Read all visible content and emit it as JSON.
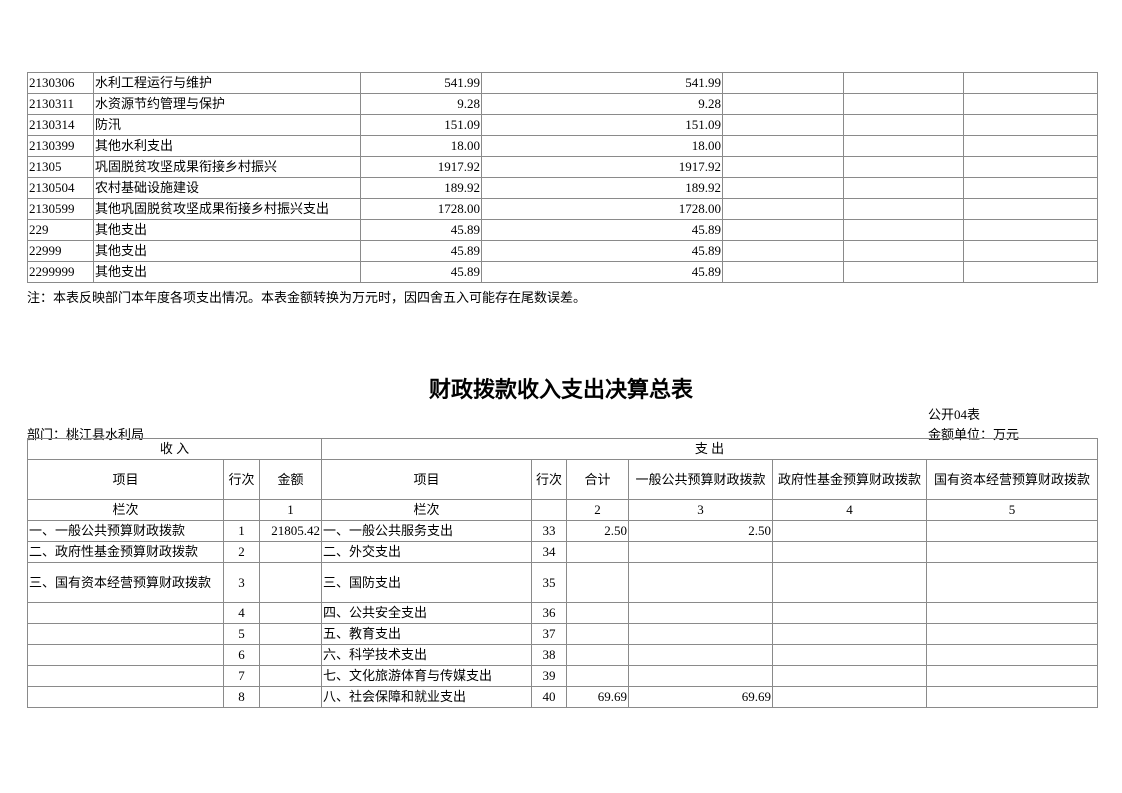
{
  "table1": {
    "rows": [
      {
        "code": "2130306",
        "name": "水利工程运行与维护",
        "total": "541.99",
        "c2": "",
        "c3": "541.99",
        "c4": "",
        "c5": "",
        "c6": ""
      },
      {
        "code": "2130311",
        "name": "水资源节约管理与保护",
        "total": "9.28",
        "c2": "",
        "c3": "9.28",
        "c4": "",
        "c5": "",
        "c6": ""
      },
      {
        "code": "2130314",
        "name": "防汛",
        "total": "151.09",
        "c2": "",
        "c3": "151.09",
        "c4": "",
        "c5": "",
        "c6": ""
      },
      {
        "code": "2130399",
        "name": "其他水利支出",
        "total": "18.00",
        "c2": "",
        "c3": "18.00",
        "c4": "",
        "c5": "",
        "c6": ""
      },
      {
        "code": "21305",
        "name": "巩固脱贫攻坚成果衔接乡村振兴",
        "total": "1917.92",
        "c2": "",
        "c3": "1917.92",
        "c4": "",
        "c5": "",
        "c6": ""
      },
      {
        "code": "2130504",
        "name": "农村基础设施建设",
        "total": "189.92",
        "c2": "",
        "c3": "189.92",
        "c4": "",
        "c5": "",
        "c6": ""
      },
      {
        "code": "2130599",
        "name": "其他巩固脱贫攻坚成果衔接乡村振兴支出",
        "total": "1728.00",
        "c2": "",
        "c3": "1728.00",
        "c4": "",
        "c5": "",
        "c6": ""
      },
      {
        "code": "229",
        "name": "其他支出",
        "total": "45.89",
        "c2": "",
        "c3": "45.89",
        "c4": "",
        "c5": "",
        "c6": ""
      },
      {
        "code": "22999",
        "name": "其他支出",
        "total": "45.89",
        "c2": "",
        "c3": "45.89",
        "c4": "",
        "c5": "",
        "c6": ""
      },
      {
        "code": "2299999",
        "name": "其他支出",
        "total": "45.89",
        "c2": "",
        "c3": "45.89",
        "c4": "",
        "c5": "",
        "c6": ""
      }
    ],
    "note": "注：本表反映部门本年度各项支出情况。本表金额转换为万元时，因四舍五入可能存在尾数误差。"
  },
  "table2": {
    "title": "财政拨款收入支出决算总表",
    "form_no": "公开04表",
    "department": "部门：桃江县水利局",
    "unit": "金额单位：万元",
    "group_income": "收 入",
    "group_expense": "支 出",
    "headers": {
      "item": "项目",
      "line": "行次",
      "amount": "金额",
      "exp_item": "项目",
      "exp_line": "行次",
      "total": "合计",
      "general": "一般公共预算财政拨款",
      "fund": "政府性基金预算财政拨款",
      "state": "国有资本经营预算财政拨款"
    },
    "column_index": {
      "label": "栏次",
      "amount": "1",
      "exp_label": "栏次",
      "total": "2",
      "general": "3",
      "fund": "4",
      "state": "5"
    },
    "rows": [
      {
        "income_item": "一、一般公共预算财政拨款",
        "income_line": "1",
        "income_amount": "21805.42",
        "exp_item": "一、一般公共服务支出",
        "exp_line": "33",
        "total": "2.50",
        "general": "2.50",
        "fund": "",
        "state": ""
      },
      {
        "income_item": "二、政府性基金预算财政拨款",
        "income_line": "2",
        "income_amount": "",
        "exp_item": "二、外交支出",
        "exp_line": "34",
        "total": "",
        "general": "",
        "fund": "",
        "state": ""
      },
      {
        "income_item": "三、国有资本经营预算财政拨款",
        "income_line": "3",
        "income_amount": "",
        "exp_item": "三、国防支出",
        "exp_line": "35",
        "total": "",
        "general": "",
        "fund": "",
        "state": ""
      },
      {
        "income_item": "",
        "income_line": "4",
        "income_amount": "",
        "exp_item": "四、公共安全支出",
        "exp_line": "36",
        "total": "",
        "general": "",
        "fund": "",
        "state": ""
      },
      {
        "income_item": "",
        "income_line": "5",
        "income_amount": "",
        "exp_item": "五、教育支出",
        "exp_line": "37",
        "total": "",
        "general": "",
        "fund": "",
        "state": ""
      },
      {
        "income_item": "",
        "income_line": "6",
        "income_amount": "",
        "exp_item": "六、科学技术支出",
        "exp_line": "38",
        "total": "",
        "general": "",
        "fund": "",
        "state": ""
      },
      {
        "income_item": "",
        "income_line": "7",
        "income_amount": "",
        "exp_item": "七、文化旅游体育与传媒支出",
        "exp_line": "39",
        "total": "",
        "general": "",
        "fund": "",
        "state": ""
      },
      {
        "income_item": "",
        "income_line": "8",
        "income_amount": "",
        "exp_item": "八、社会保障和就业支出",
        "exp_line": "40",
        "total": "69.69",
        "general": "69.69",
        "fund": "",
        "state": ""
      }
    ]
  }
}
